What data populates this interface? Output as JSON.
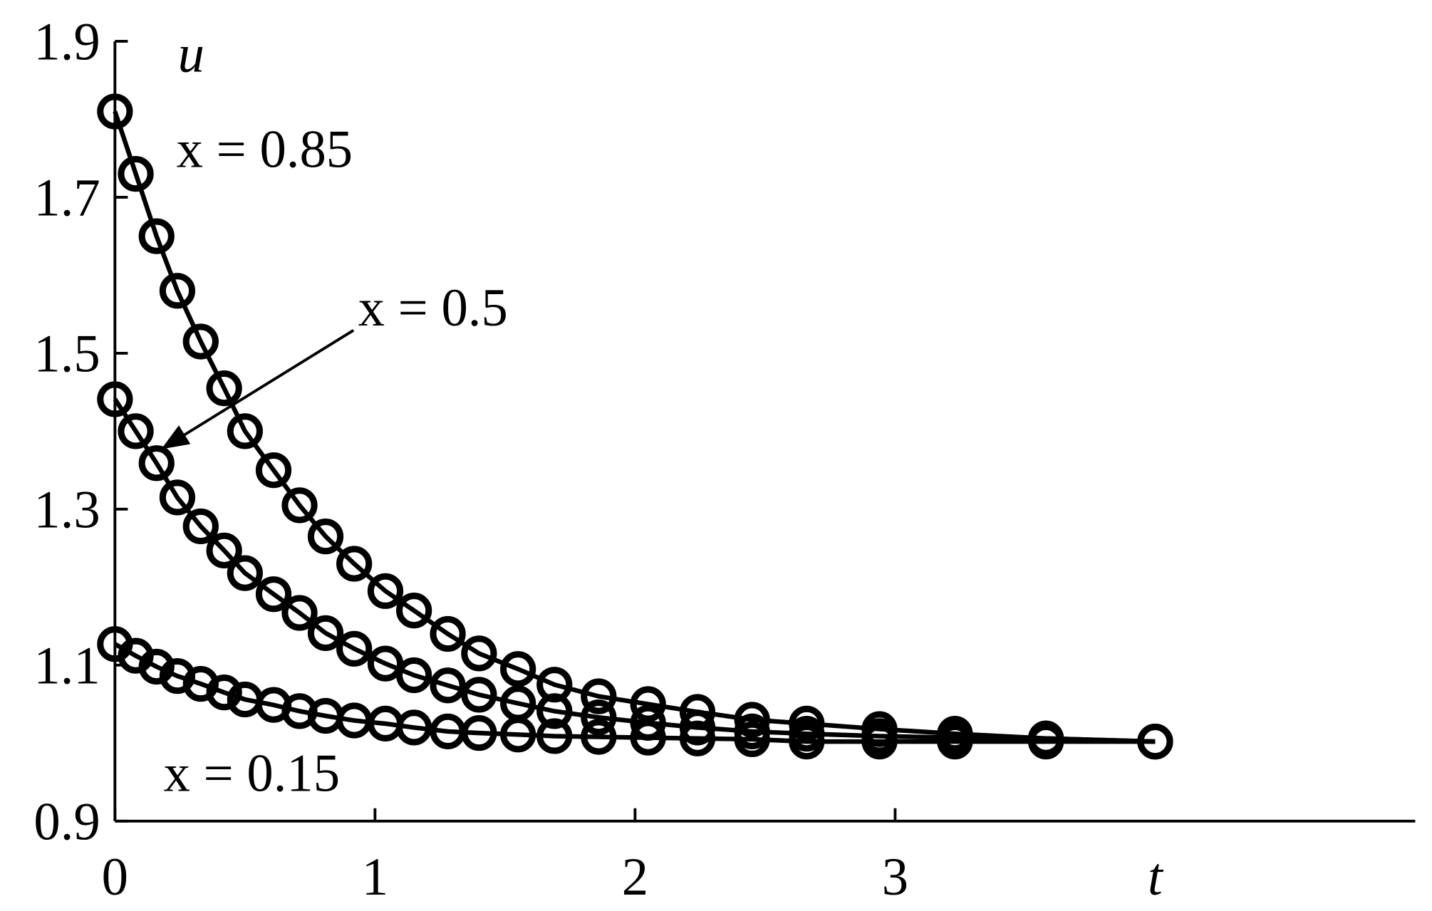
{
  "chart_data": {
    "type": "line",
    "x_label": "t",
    "y_label": "u",
    "x": [
      0,
      0.08,
      0.16,
      0.24,
      0.33,
      0.42,
      0.5,
      0.61,
      0.71,
      0.81,
      0.92,
      1.04,
      1.15,
      1.28,
      1.4,
      1.55,
      1.69,
      1.86,
      2.05,
      2.24,
      2.45,
      2.66,
      2.94,
      3.23,
      3.58,
      4.0
    ],
    "series": [
      {
        "name": "x = 0.85",
        "color": "#000000",
        "values": [
          1.81,
          1.73,
          1.65,
          1.58,
          1.515,
          1.455,
          1.4,
          1.35,
          1.305,
          1.265,
          1.23,
          1.195,
          1.17,
          1.14,
          1.115,
          1.095,
          1.075,
          1.06,
          1.05,
          1.04,
          1.03,
          1.025,
          1.018,
          1.012,
          1.006,
          1.002
        ]
      },
      {
        "name": "x = 0.5",
        "color": "#000000",
        "values": [
          1.441,
          1.4,
          1.359,
          1.315,
          1.278,
          1.247,
          1.218,
          1.191,
          1.167,
          1.141,
          1.121,
          1.102,
          1.087,
          1.074,
          1.062,
          1.051,
          1.041,
          1.033,
          1.026,
          1.02,
          1.015,
          1.012,
          1.009,
          1.007,
          1.006,
          1.002
        ]
      },
      {
        "name": "x = 0.15",
        "color": "#000000",
        "values": [
          1.127,
          1.112,
          1.098,
          1.086,
          1.076,
          1.065,
          1.056,
          1.049,
          1.041,
          1.035,
          1.029,
          1.025,
          1.02,
          1.015,
          1.013,
          1.011,
          1.009,
          1.008,
          1.007,
          1.006,
          1.005,
          1.002,
          1.002,
          1.002,
          1.002,
          1.002
        ]
      }
    ],
    "xlim": [
      0,
      5
    ],
    "ylim": [
      0.9,
      1.9
    ],
    "xticks": [
      0,
      1,
      2,
      3
    ],
    "yticks": [
      0.9,
      1.1,
      1.3,
      1.5,
      1.7,
      1.9
    ],
    "grid": false,
    "marker": "open-circle"
  }
}
